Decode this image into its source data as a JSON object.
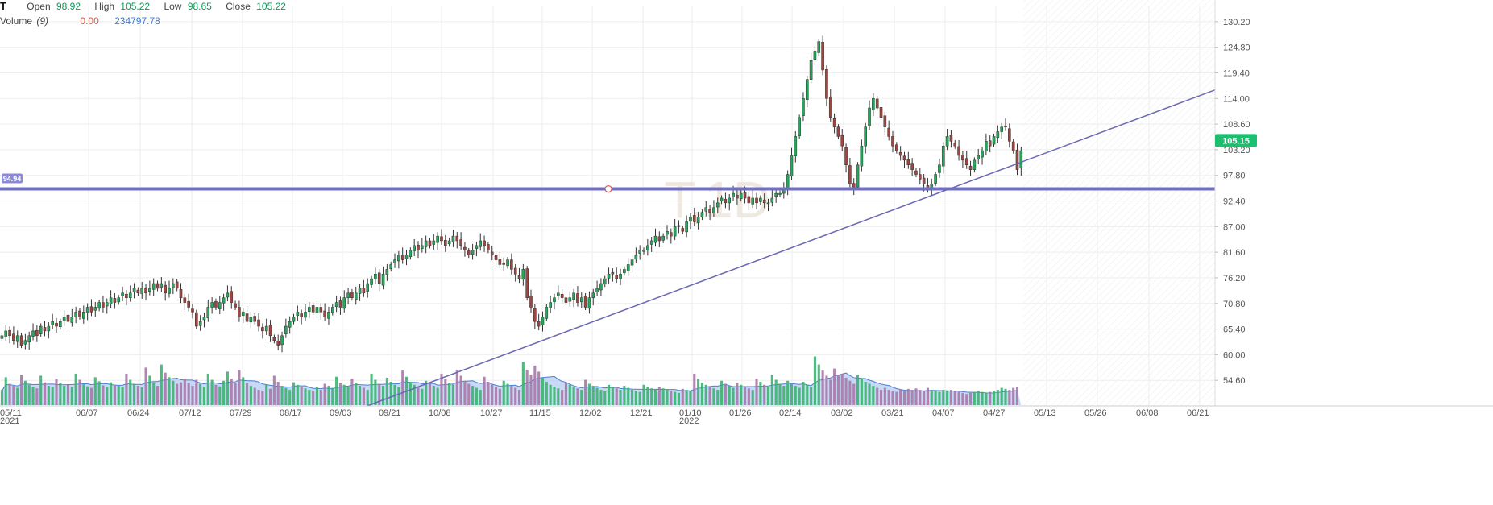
{
  "legend": {
    "symbol": "T",
    "open_label": "Open",
    "open": "98.92",
    "high_label": "High",
    "high": "105.22",
    "low_label": "Low",
    "low": "98.65",
    "close_label": "Close",
    "close": "105.22",
    "volume_label": "Volume",
    "volume_period": "(9)",
    "volume_change": "0.00",
    "volume_ma": "234797.78"
  },
  "watermark": "T,1D",
  "colors": {
    "up": "#26a65b",
    "down": "#a0453f",
    "vol_up": "#3cb371",
    "vol_down": "#a878a8",
    "vol_ma_fill": "#a9c4f0",
    "vol_ma_line": "#4a7fd8",
    "hline": "#7070c0",
    "trendline": "#6a68b4",
    "last_price_bg": "#1bbf6e",
    "grid": "#eeeeee"
  },
  "chart_data": {
    "type": "candlestick",
    "y_ticks": [
      "130.20",
      "124.80",
      "119.40",
      "114.00",
      "108.60",
      "103.20",
      "97.80",
      "92.40",
      "87.00",
      "81.60",
      "76.20",
      "70.80",
      "65.40",
      "60.00",
      "54.60"
    ],
    "ylim": [
      49.2,
      133.4
    ],
    "x_ticks": [
      {
        "label": "05/11",
        "sub": "2021"
      },
      {
        "label": "06/07"
      },
      {
        "label": "06/24"
      },
      {
        "label": "07/12"
      },
      {
        "label": "07/29"
      },
      {
        "label": "08/17"
      },
      {
        "label": "09/03"
      },
      {
        "label": "09/21"
      },
      {
        "label": "10/08"
      },
      {
        "label": "10/27"
      },
      {
        "label": "11/15"
      },
      {
        "label": "12/02"
      },
      {
        "label": "12/21"
      },
      {
        "label": "01/10",
        "sub": "2022"
      },
      {
        "label": "01/26"
      },
      {
        "label": "02/14"
      },
      {
        "label": "03/02"
      },
      {
        "label": "03/21"
      },
      {
        "label": "04/07"
      },
      {
        "label": "04/27"
      },
      {
        "label": "05/13"
      },
      {
        "label": "05/26"
      },
      {
        "label": "06/08"
      },
      {
        "label": "06/21"
      }
    ],
    "horizontal_line": {
      "value": 94.94,
      "label": "94.94"
    },
    "last_price": {
      "value": 105.15,
      "label": "105.15"
    },
    "trendline": {
      "from": [
        0.302,
        49.2
      ],
      "to": [
        1.0,
        115.8
      ]
    },
    "future_fraction": 0.158,
    "closes": [
      64,
      65,
      64,
      63,
      64,
      62,
      63,
      64,
      65,
      64,
      66,
      65,
      66,
      67,
      66,
      67,
      68,
      67,
      68,
      69,
      68,
      69,
      70,
      69,
      70,
      71,
      70,
      71,
      72,
      71,
      72,
      73,
      72,
      73,
      74,
      73,
      74,
      73,
      74,
      75,
      74,
      75,
      73,
      74,
      75,
      74,
      72,
      71,
      70,
      69,
      66,
      67,
      68,
      70,
      71,
      70,
      71,
      72,
      73,
      71,
      70,
      68,
      69,
      67,
      68,
      67,
      66,
      65,
      66,
      64,
      63,
      62,
      64,
      66,
      67,
      68,
      69,
      68,
      69,
      70,
      69,
      70,
      69,
      68,
      69,
      70,
      71,
      70,
      72,
      73,
      72,
      73,
      74,
      73,
      75,
      76,
      77,
      75,
      77,
      78,
      79,
      80,
      81,
      80,
      81,
      82,
      83,
      82,
      83,
      84,
      83,
      84,
      85,
      84,
      83,
      84,
      85,
      84,
      83,
      82,
      81,
      82,
      83,
      84,
      83,
      82,
      81,
      80,
      79,
      79,
      80,
      78,
      77,
      76,
      78,
      72,
      70,
      67,
      66,
      68,
      70,
      71,
      72,
      73,
      72,
      71,
      72,
      73,
      71,
      72,
      70,
      72,
      73,
      74,
      75,
      76,
      77,
      77,
      76,
      77,
      78,
      79,
      80,
      81,
      82,
      82,
      83,
      84,
      85,
      84,
      85,
      86,
      85,
      87,
      87,
      86,
      88,
      89,
      88,
      89,
      90,
      91,
      90,
      91,
      92,
      93,
      92,
      93,
      94,
      93,
      94,
      93,
      92,
      93,
      92,
      93,
      92,
      92,
      93,
      94,
      94,
      95,
      98,
      102,
      106,
      110,
      114,
      118,
      122,
      124,
      126,
      120,
      114,
      110,
      108,
      106,
      104,
      100,
      96,
      95,
      100,
      104,
      108,
      112,
      114,
      112,
      110,
      108,
      106,
      104,
      103,
      102,
      101,
      100,
      99,
      98,
      97,
      96,
      95,
      96,
      98,
      100,
      104,
      106,
      105,
      104,
      102,
      101,
      100,
      99,
      101,
      102,
      103,
      105,
      104,
      106,
      107,
      108,
      108,
      105,
      103,
      99,
      103
    ],
    "volume": [
      0.3,
      0.55,
      0.42,
      0.38,
      0.34,
      0.6,
      0.48,
      0.4,
      0.36,
      0.33,
      0.58,
      0.45,
      0.38,
      0.36,
      0.52,
      0.44,
      0.38,
      0.4,
      0.35,
      0.62,
      0.5,
      0.41,
      0.37,
      0.34,
      0.55,
      0.47,
      0.39,
      0.36,
      0.45,
      0.4,
      0.38,
      0.36,
      0.62,
      0.5,
      0.42,
      0.38,
      0.35,
      0.74,
      0.58,
      0.45,
      0.38,
      0.8,
      0.64,
      0.55,
      0.48,
      0.42,
      0.45,
      0.52,
      0.44,
      0.38,
      0.5,
      0.42,
      0.36,
      0.62,
      0.5,
      0.4,
      0.37,
      0.48,
      0.66,
      0.52,
      0.44,
      0.7,
      0.55,
      0.44,
      0.38,
      0.34,
      0.3,
      0.28,
      0.4,
      0.32,
      0.58,
      0.46,
      0.38,
      0.34,
      0.3,
      0.45,
      0.4,
      0.36,
      0.33,
      0.3,
      0.28,
      0.35,
      0.3,
      0.42,
      0.38,
      0.34,
      0.56,
      0.44,
      0.4,
      0.36,
      0.52,
      0.44,
      0.38,
      0.34,
      0.3,
      0.62,
      0.5,
      0.42,
      0.38,
      0.54,
      0.46,
      0.4,
      0.36,
      0.68,
      0.56,
      0.46,
      0.4,
      0.36,
      0.32,
      0.48,
      0.42,
      0.38,
      0.34,
      0.62,
      0.52,
      0.44,
      0.4,
      0.7,
      0.58,
      0.48,
      0.42,
      0.38,
      0.34,
      0.3,
      0.56,
      0.46,
      0.4,
      0.36,
      0.32,
      0.48,
      0.42,
      0.38,
      0.34,
      0.3,
      0.85,
      0.7,
      0.6,
      0.78,
      0.66,
      0.54,
      0.46,
      0.4,
      0.36,
      0.33,
      0.3,
      0.45,
      0.4,
      0.36,
      0.33,
      0.3,
      0.5,
      0.42,
      0.38,
      0.34,
      0.3,
      0.28,
      0.4,
      0.36,
      0.33,
      0.3,
      0.38,
      0.34,
      0.3,
      0.28,
      0.26,
      0.4,
      0.36,
      0.33,
      0.3,
      0.36,
      0.33,
      0.3,
      0.28,
      0.26,
      0.24,
      0.32,
      0.3,
      0.28,
      0.62,
      0.52,
      0.44,
      0.4,
      0.36,
      0.33,
      0.3,
      0.48,
      0.42,
      0.38,
      0.34,
      0.44,
      0.4,
      0.36,
      0.33,
      0.3,
      0.52,
      0.46,
      0.4,
      0.36,
      0.6,
      0.5,
      0.42,
      0.38,
      0.48,
      0.42,
      0.38,
      0.34,
      0.46,
      0.4,
      0.36,
      0.96,
      0.8,
      0.68,
      0.58,
      0.5,
      0.72,
      0.6,
      0.62,
      0.54,
      0.48,
      0.42,
      0.6,
      0.52,
      0.46,
      0.42,
      0.38,
      0.34,
      0.3,
      0.34,
      0.3,
      0.28,
      0.26,
      0.3,
      0.28,
      0.32,
      0.3,
      0.33,
      0.3,
      0.28,
      0.34,
      0.3,
      0.28,
      0.26,
      0.3,
      0.28,
      0.3,
      0.28,
      0.26,
      0.24,
      0.22,
      0.24,
      0.26,
      0.28,
      0.26,
      0.24,
      0.26,
      0.28,
      0.3,
      0.34,
      0.32,
      0.3,
      0.34,
      0.36
    ]
  }
}
